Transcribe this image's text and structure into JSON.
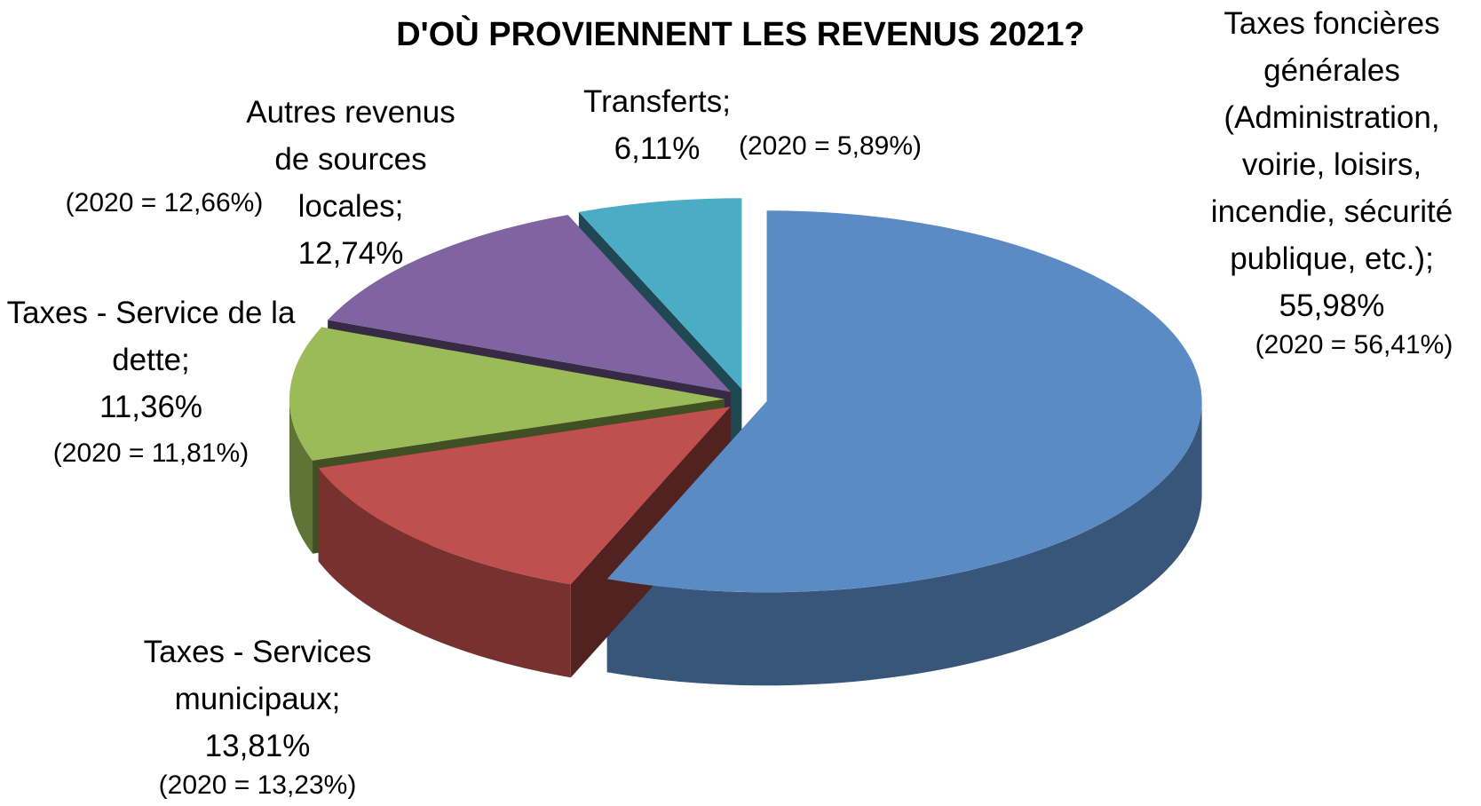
{
  "chart_data": {
    "type": "pie",
    "title": "D'OÙ PROVIENNENT LES REVENUS 2021?",
    "categories": [
      "Taxes foncières générales (Administration, voirie, loisirs, incendie, sécurité publique, etc.);",
      "Taxes - Services municipaux;",
      "Taxes - Service de la dette;",
      "Autres revenus de sources locales;",
      "Transferts;"
    ],
    "values": [
      55.98,
      13.81,
      11.36,
      12.74,
      6.11
    ],
    "value_labels": [
      "55,98%",
      "13,81%",
      "11,36%",
      "12,74%",
      "6,11%"
    ],
    "annotations": [
      "(2020 = 56,41%)",
      "(2020 = 13,23%)",
      "(2020 = 11,81%)",
      "(2020 = 12,66%)",
      "(2020 = 5,89%)"
    ],
    "colors": [
      "#5b8bc5",
      "#c0504d",
      "#9bbb59",
      "#8064a2",
      "#4bacc6"
    ]
  }
}
